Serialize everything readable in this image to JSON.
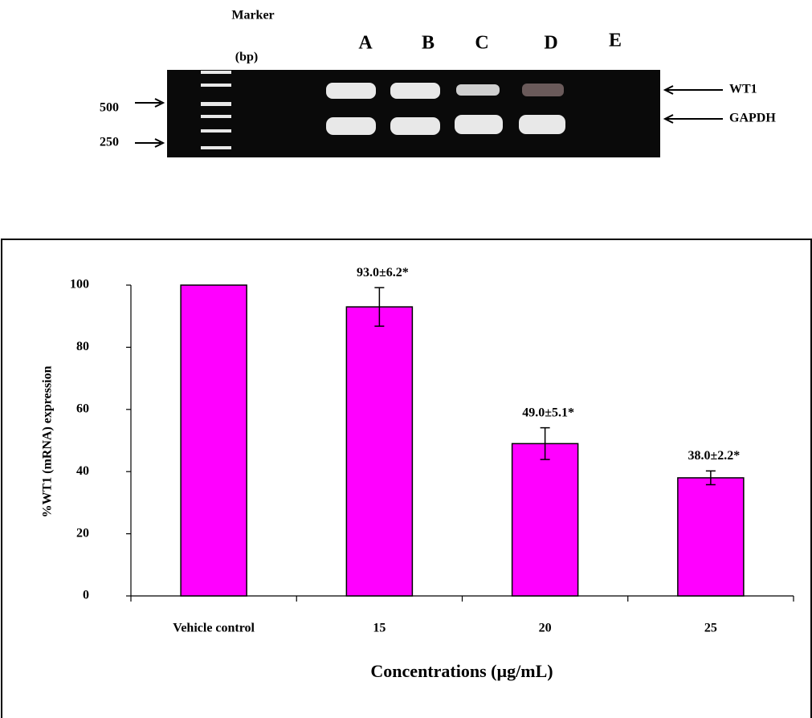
{
  "gel": {
    "marker_label": "Marker",
    "unit_label": "(bp)",
    "lanes": [
      "A",
      "B",
      "C",
      "D",
      "E"
    ],
    "sizes": [
      "500",
      "250"
    ],
    "bands": [
      "WT1",
      "GAPDH"
    ]
  },
  "chart_data": {
    "type": "bar",
    "y_label": "%WT1 (mRNA) expression",
    "x_label": "Concentrations (µg/mL)",
    "categories": [
      "Vehicle control",
      "15",
      "20",
      "25"
    ],
    "values": [
      100,
      93,
      49,
      38
    ],
    "errors": [
      null,
      6.2,
      5.1,
      2.2
    ],
    "value_labels": [
      null,
      "93.0±6.2*",
      "49.0±5.1*",
      "38.0±2.2*"
    ],
    "color": "#ff00ff",
    "ylim": [
      0,
      100
    ],
    "yticks": [
      0,
      20,
      40,
      60,
      80,
      100
    ]
  }
}
